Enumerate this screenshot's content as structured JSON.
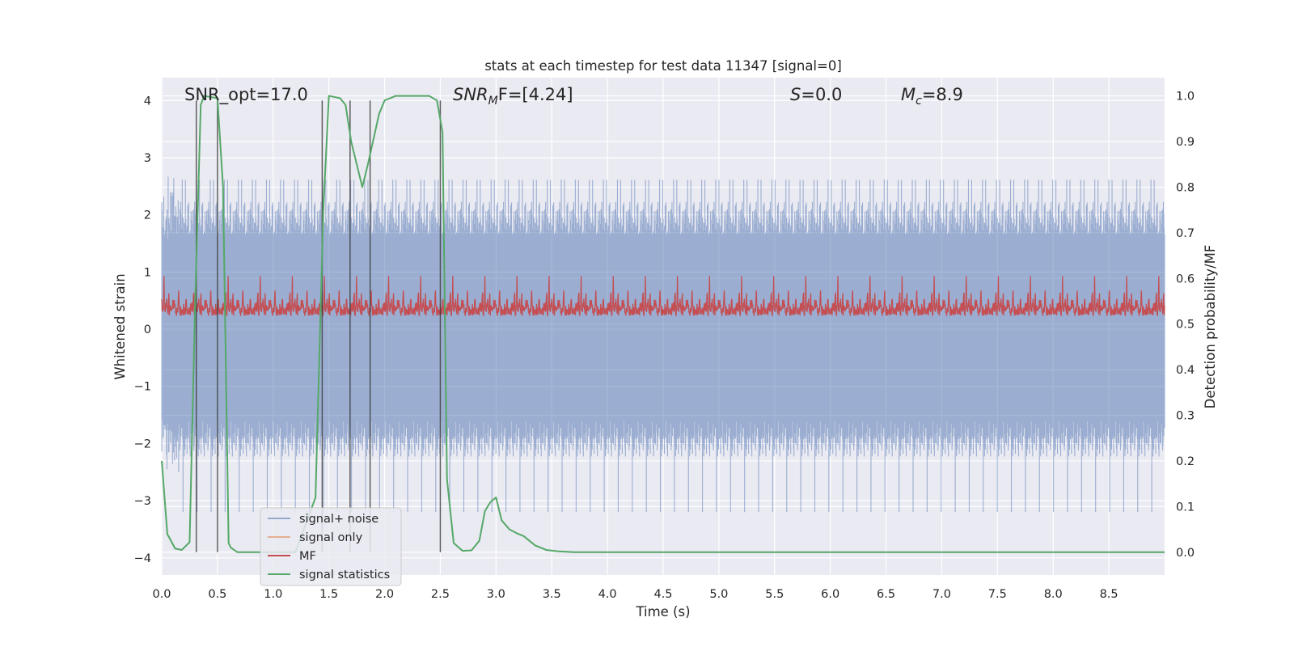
{
  "chart_data": {
    "type": "line",
    "title": "stats at each timestep for test data 11347 [signal=0]",
    "xlabel": "Time (s)",
    "ylabel_left": "Whitened strain",
    "ylabel_right": "Detection probability/MF",
    "xlim": [
      0,
      9
    ],
    "ylim_left": [
      -4.3,
      4.4
    ],
    "ylim_right": [
      -0.05,
      1.04
    ],
    "x_ticks": [
      "0.0",
      "0.5",
      "1.0",
      "1.5",
      "2.0",
      "2.5",
      "3.0",
      "3.5",
      "4.0",
      "4.5",
      "5.0",
      "5.5",
      "6.0",
      "6.5",
      "7.0",
      "7.5",
      "8.0",
      "8.5"
    ],
    "y_ticks_left": [
      "4",
      "3",
      "2",
      "1",
      "0",
      "−1",
      "−2",
      "−3",
      "−4"
    ],
    "y_ticks_right": [
      "1.0",
      "0.9",
      "0.8",
      "0.7",
      "0.6",
      "0.5",
      "0.4",
      "0.3",
      "0.2",
      "0.1",
      "0.0"
    ],
    "grid": true,
    "annotations": {
      "snr_opt": "SNR_opt=17.0",
      "snr_mf_sym": "SNR",
      "snr_mf_sub": "M",
      "snr_mf_rest": "F=[4.24]",
      "s_sym": "S",
      "s_rest": "=0.0",
      "mc_sym": "M",
      "mc_sub": "c",
      "mc_rest": "=8.9"
    },
    "legend": {
      "location": "lower-left",
      "entries": [
        "signal+ noise",
        "signal only",
        "MF",
        "signal statistics"
      ]
    },
    "vertical_markers_s": [
      0.31,
      0.5,
      1.44,
      1.69,
      1.87,
      2.5
    ],
    "series": [
      {
        "name": "signal+ noise",
        "color": "#4c72b0",
        "description": "noise strain",
        "amplitude_envelope": 2.4
      },
      {
        "name": "signal only",
        "color": "#dd8452",
        "values": []
      },
      {
        "name": "MF",
        "color": "#c44e52",
        "baseline_right_axis": 0.5,
        "range_right_axis": [
          0.5,
          0.6
        ]
      },
      {
        "name": "signal statistics",
        "color": "#55a868",
        "x": [
          0.0,
          0.05,
          0.12,
          0.18,
          0.25,
          0.3,
          0.35,
          0.38,
          0.45,
          0.5,
          0.55,
          0.6,
          0.62,
          0.68,
          0.8,
          1.0,
          1.2,
          1.38,
          1.45,
          1.5,
          1.6,
          1.65,
          1.7,
          1.75,
          1.8,
          1.85,
          1.95,
          2.0,
          2.1,
          2.2,
          2.3,
          2.4,
          2.47,
          2.52,
          2.56,
          2.62,
          2.7,
          2.78,
          2.85,
          2.9,
          2.95,
          3.0,
          3.05,
          3.12,
          3.2,
          3.25,
          3.35,
          3.45,
          3.55,
          3.7,
          9.0
        ],
        "values": [
          0.2,
          0.04,
          0.008,
          0.005,
          0.022,
          0.55,
          0.98,
          1.0,
          0.997,
          0.995,
          0.8,
          0.02,
          0.01,
          0.0,
          0.0,
          0.0,
          0.0,
          0.12,
          0.75,
          1.0,
          0.995,
          0.98,
          0.9,
          0.85,
          0.8,
          0.85,
          0.96,
          0.99,
          1.0,
          1.0,
          1.0,
          1.0,
          0.99,
          0.92,
          0.16,
          0.02,
          0.003,
          0.004,
          0.025,
          0.09,
          0.11,
          0.12,
          0.07,
          0.05,
          0.04,
          0.035,
          0.015,
          0.005,
          0.002,
          0.0,
          0.0
        ]
      }
    ]
  }
}
